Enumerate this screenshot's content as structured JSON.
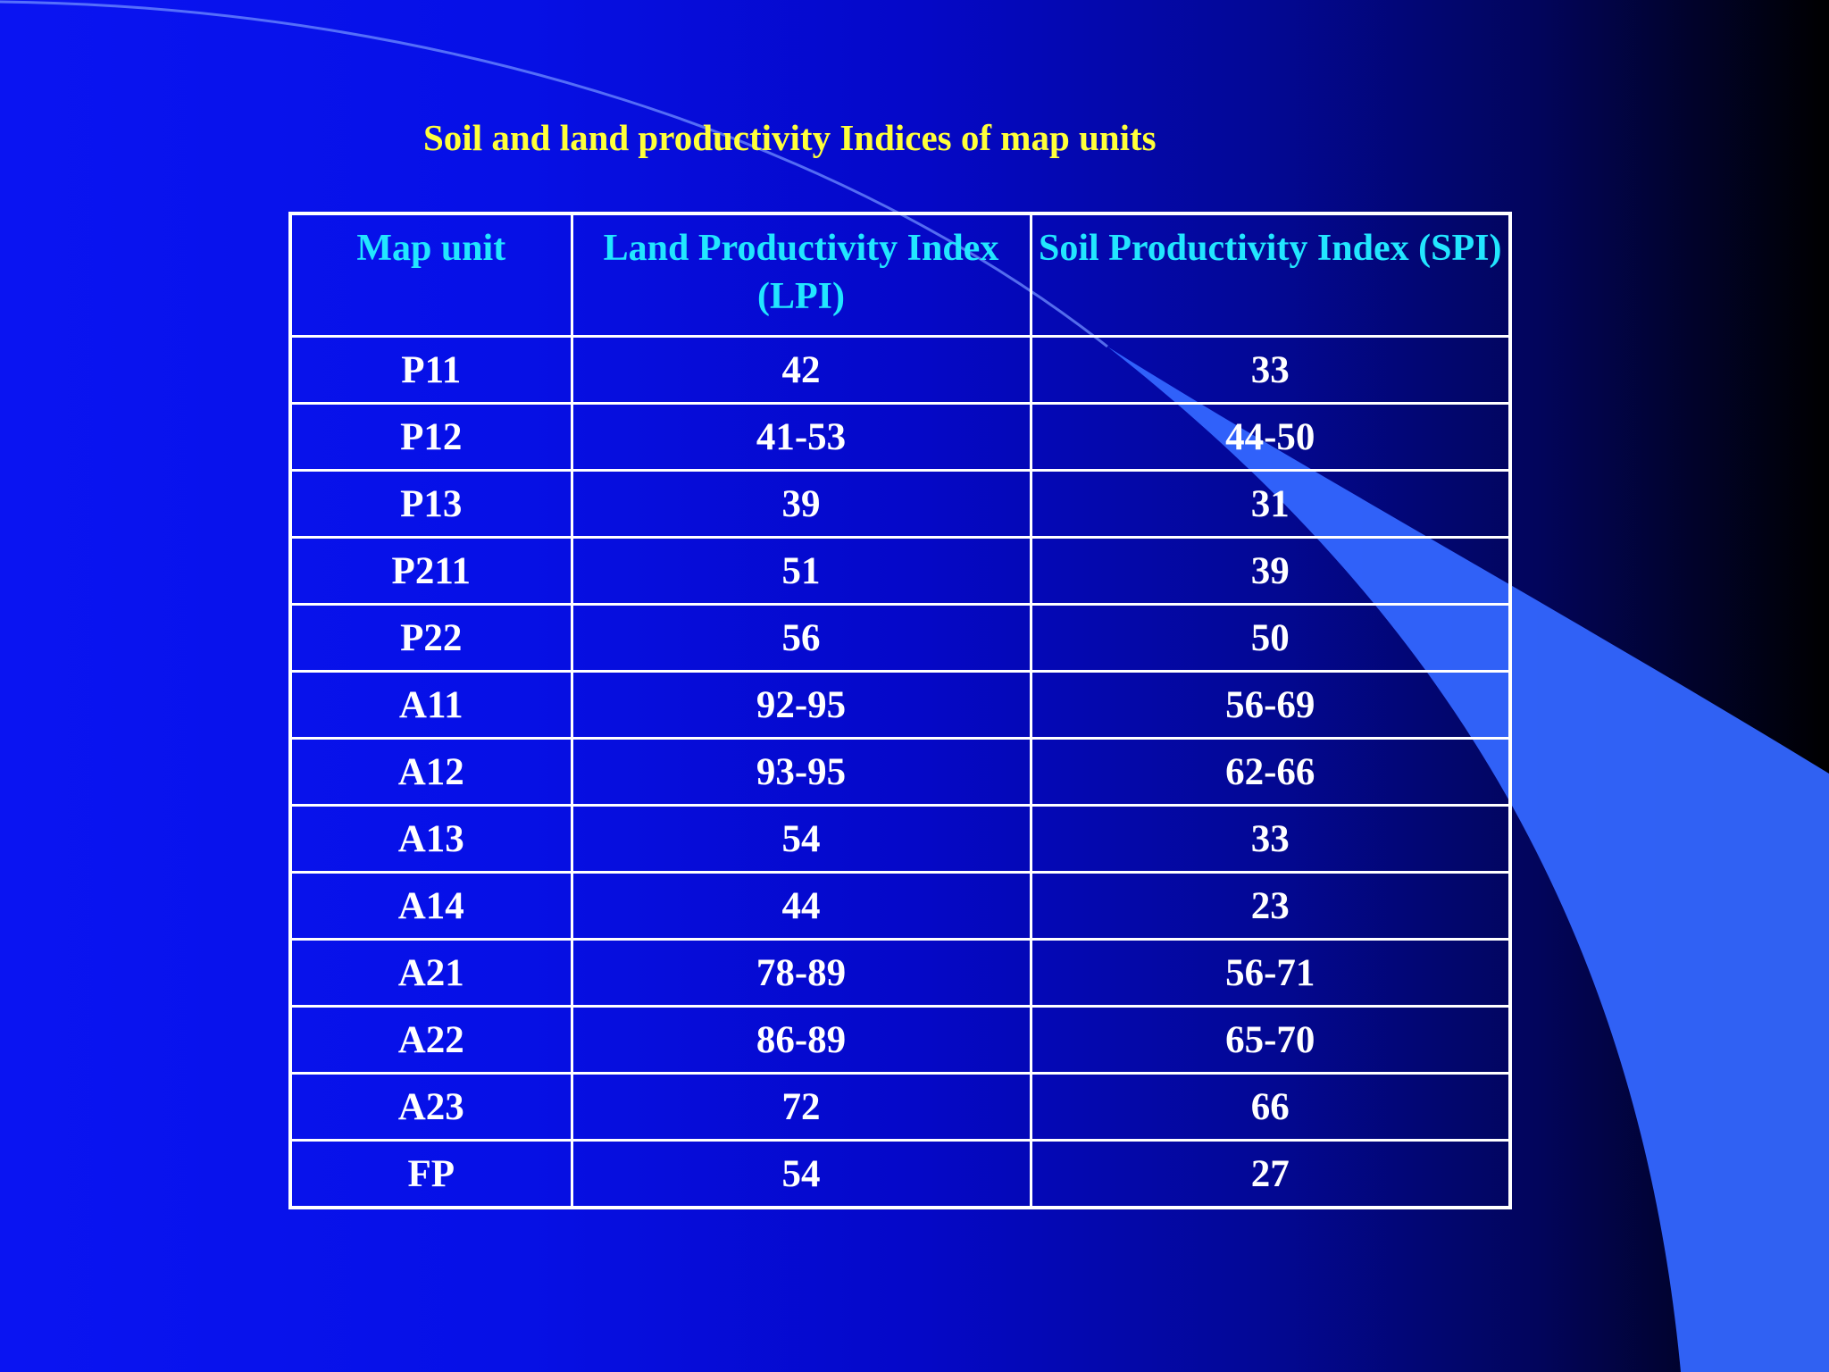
{
  "slide": {
    "title": "Soil and land productivity Indices of map units"
  },
  "colors": {
    "title": "#ffff3a",
    "header_text": "#22e6ff",
    "cell_text": "#ffffff",
    "grid_lines": "#ffffff",
    "background_left": "#0a14f2",
    "background_right": "#000000",
    "swoosh": "#3366ff"
  },
  "table": {
    "headers": [
      "Map unit",
      "Land Productivity Index (LPI)",
      "Soil Productivity Index (SPI)"
    ],
    "rows": [
      [
        "P11",
        "42",
        "33"
      ],
      [
        "P12",
        "41-53",
        "44-50"
      ],
      [
        "P13",
        "39",
        "31"
      ],
      [
        "P211",
        "51",
        "39"
      ],
      [
        "P22",
        "56",
        "50"
      ],
      [
        "A11",
        "92-95",
        "56-69"
      ],
      [
        "A12",
        "93-95",
        "62-66"
      ],
      [
        "A13",
        "54",
        "33"
      ],
      [
        "A14",
        "44",
        "23"
      ],
      [
        "A21",
        "78-89",
        "56-71"
      ],
      [
        "A22",
        "86-89",
        "65-70"
      ],
      [
        "A23",
        "72",
        "66"
      ],
      [
        "FP",
        "54",
        "27"
      ]
    ]
  }
}
